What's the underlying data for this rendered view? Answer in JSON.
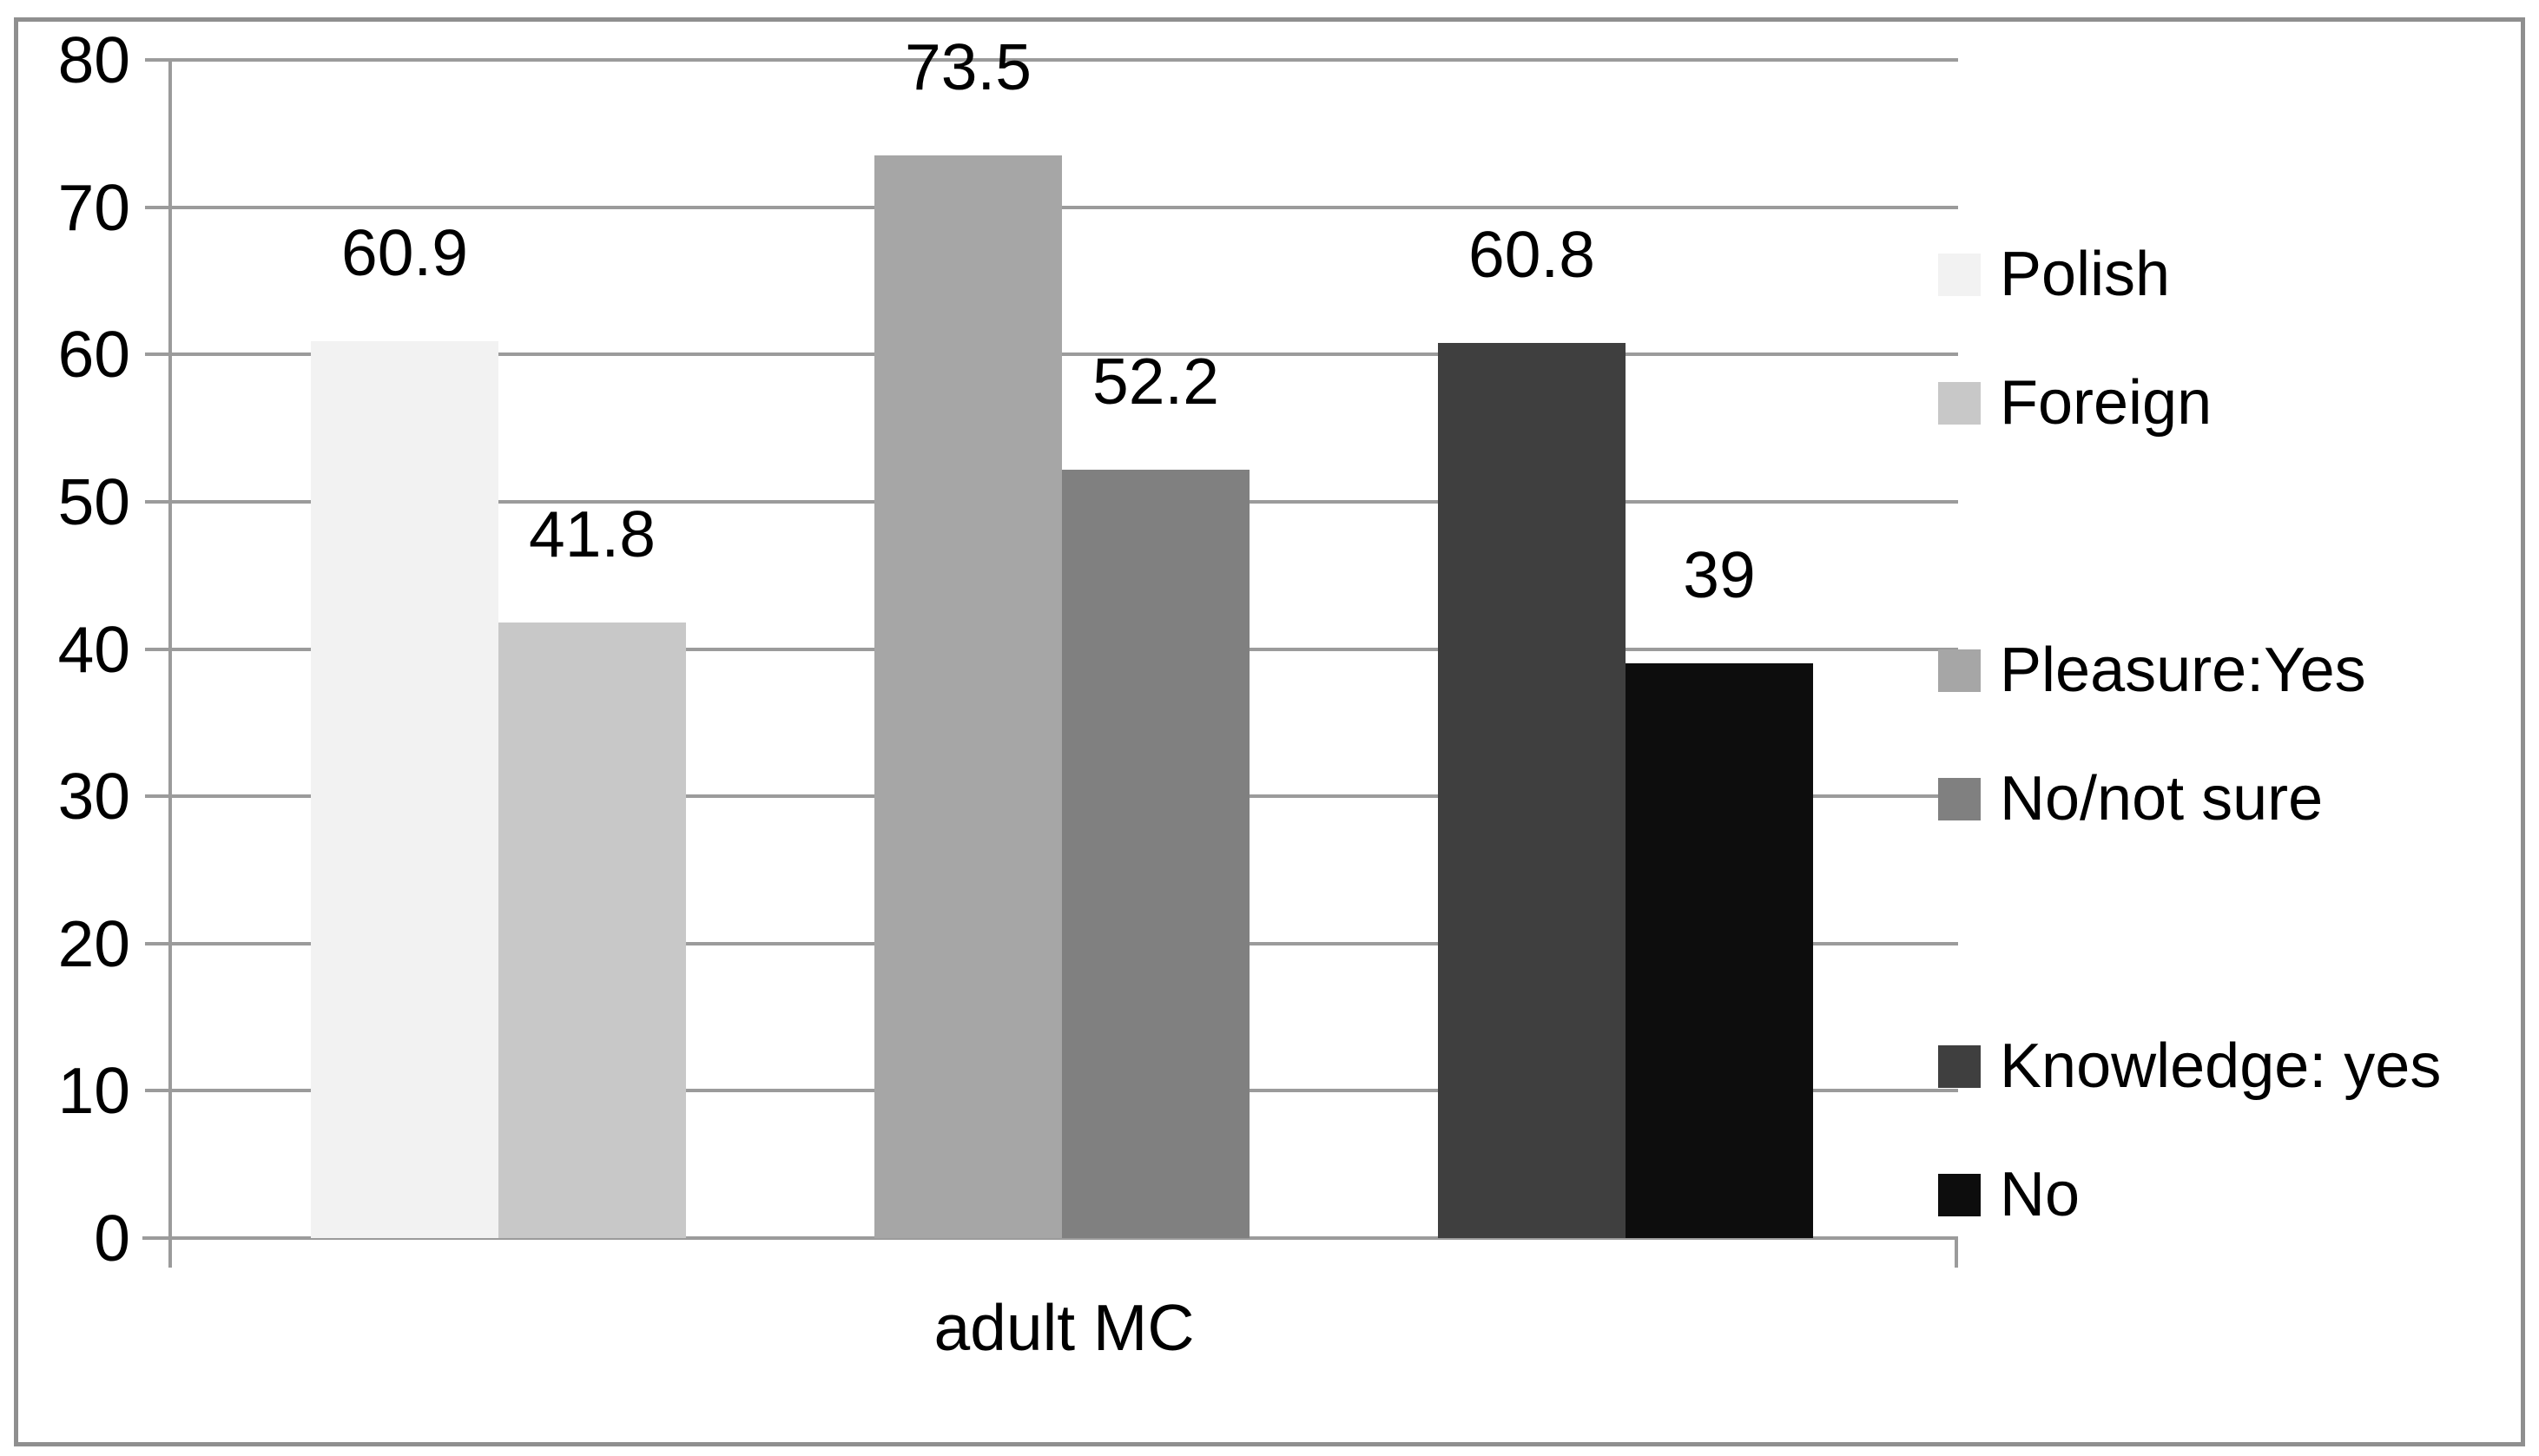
{
  "chart_data": {
    "type": "bar",
    "title": "",
    "categories": [
      "adult MC"
    ],
    "xlabel": "adult MC",
    "ylabel": "",
    "ylim": [
      0,
      80
    ],
    "ytick_step": 10,
    "yticks": [
      "80",
      "70",
      "60",
      "50",
      "40",
      "30",
      "20",
      "10",
      "0"
    ],
    "grid": true,
    "legend_position": "right",
    "series": [
      {
        "key": "polish",
        "name": "Polish",
        "value": 60.9,
        "label": "60.9",
        "color": "#f2f2f2",
        "group": 1
      },
      {
        "key": "foreign",
        "name": "Foreign",
        "value": 41.8,
        "label": "41.8",
        "color": "#c8c8c8",
        "group": 1
      },
      {
        "key": "pleasure-yes",
        "name": "Pleasure:Yes",
        "value": 73.5,
        "label": "73.5",
        "color": "#a6a6a6",
        "group": 2
      },
      {
        "key": "no-not-sure",
        "name": "No/not sure",
        "value": 52.2,
        "label": "52.2",
        "color": "#808080",
        "group": 2
      },
      {
        "key": "knowledge-yes",
        "name": "Knowledge: yes",
        "value": 60.8,
        "label": "60.8",
        "color": "#3f3f3f",
        "group": 3
      },
      {
        "key": "no",
        "name": "No",
        "value": 39,
        "label": "39",
        "color": "#0d0d0d",
        "group": 3
      }
    ]
  },
  "colors": {
    "gridline": "#9b9b9b",
    "axis": "#9b9b9b",
    "frame_border": "#8f8f8f",
    "text": "#000000",
    "background": "#ffffff"
  }
}
